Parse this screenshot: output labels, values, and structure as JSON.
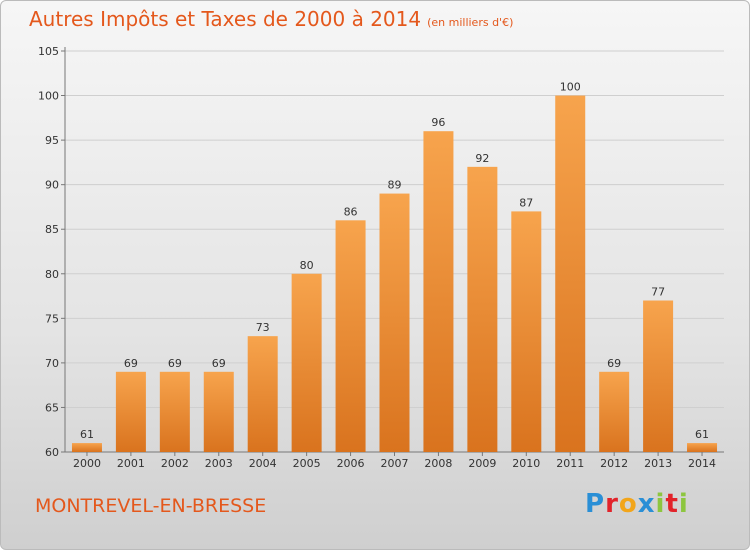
{
  "header": {
    "title": "Autres Impôts et Taxes de 2000 à 2014",
    "unit": "(en milliers d'€)"
  },
  "footer": {
    "place": "MONTREVEL-EN-BRESSE",
    "brand_letters": [
      "P",
      "r",
      "o",
      "x",
      "i",
      "t",
      "i"
    ],
    "brand_colors": [
      "#2a8fd6",
      "#e2232a",
      "#f2a51a",
      "#2a8fd6",
      "#8dc63f",
      "#e2232a",
      "#8dc63f"
    ]
  },
  "colors": {
    "bar_top": "#f7a44d",
    "bar_bottom": "#d9731e",
    "accent": "#e4581c"
  },
  "chart_data": {
    "type": "bar",
    "title": "Autres Impôts et Taxes de 2000 à 2014",
    "xlabel": "",
    "ylabel": "",
    "categories": [
      "2000",
      "2001",
      "2002",
      "2003",
      "2004",
      "2005",
      "2006",
      "2007",
      "2008",
      "2009",
      "2010",
      "2011",
      "2012",
      "2013",
      "2014"
    ],
    "values": [
      61,
      69,
      69,
      69,
      73,
      80,
      86,
      89,
      96,
      92,
      87,
      100,
      69,
      77,
      61
    ],
    "ylim": [
      60,
      105
    ],
    "yticks": [
      60,
      65,
      70,
      75,
      80,
      85,
      90,
      95,
      100,
      105
    ],
    "grid": true,
    "data_labels": true
  }
}
